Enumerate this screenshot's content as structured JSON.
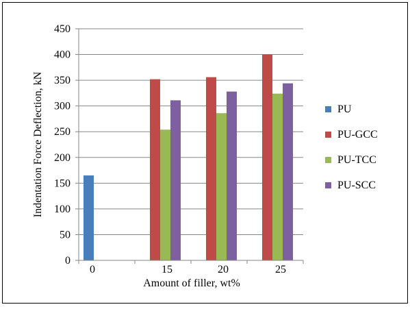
{
  "chart_data": {
    "type": "bar",
    "categories": [
      "0",
      "15",
      "20",
      "25"
    ],
    "series": [
      {
        "name": "PU",
        "color": "#4a7ebb",
        "values": [
          165,
          null,
          null,
          null
        ]
      },
      {
        "name": "PU-GCC",
        "color": "#be4b48",
        "values": [
          null,
          352,
          356,
          400
        ]
      },
      {
        "name": "PU-TCC",
        "color": "#98b954",
        "values": [
          null,
          254,
          286,
          324
        ]
      },
      {
        "name": "PU-SCC",
        "color": "#7d60a0",
        "values": [
          null,
          311,
          328,
          344
        ]
      }
    ],
    "xlabel": "Amount of filler, wt%",
    "ylabel": "Indentation Force Deflection, kN",
    "ylim": [
      0,
      450
    ],
    "yticks": [
      0,
      50,
      100,
      150,
      200,
      250,
      300,
      350,
      400,
      450
    ],
    "grid": true,
    "legend_position": "right"
  }
}
